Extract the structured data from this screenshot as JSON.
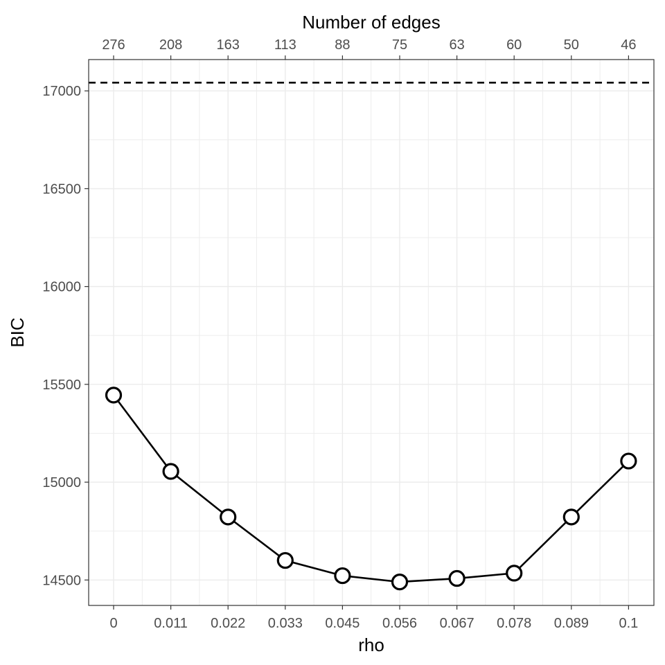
{
  "chart_data": {
    "type": "line",
    "title": "",
    "xlabel": "rho",
    "ylabel": "BIC",
    "x2label": "Number of edges",
    "categories": [
      "0",
      "0.011",
      "0.022",
      "0.033",
      "0.045",
      "0.056",
      "0.067",
      "0.078",
      "0.089",
      "0.1"
    ],
    "top_categories": [
      "276",
      "208",
      "163",
      "113",
      "88",
      "75",
      "63",
      "60",
      "50",
      "46"
    ],
    "series": [
      {
        "values": [
          15445,
          15055,
          14822,
          14600,
          14522,
          14490,
          14508,
          14535,
          14822,
          15108
        ]
      }
    ],
    "reference_line": {
      "y": 17042,
      "style": "dashed"
    },
    "y_ticks": [
      14500,
      15000,
      15500,
      16000,
      16500,
      17000
    ],
    "ylim": [
      14370,
      17160
    ],
    "grid": true,
    "colors": {
      "line": "#000000",
      "point_fill": "#ffffff",
      "grid": "#ebebeb",
      "border": "#333333",
      "tick_text": "#4d4d4d"
    }
  }
}
